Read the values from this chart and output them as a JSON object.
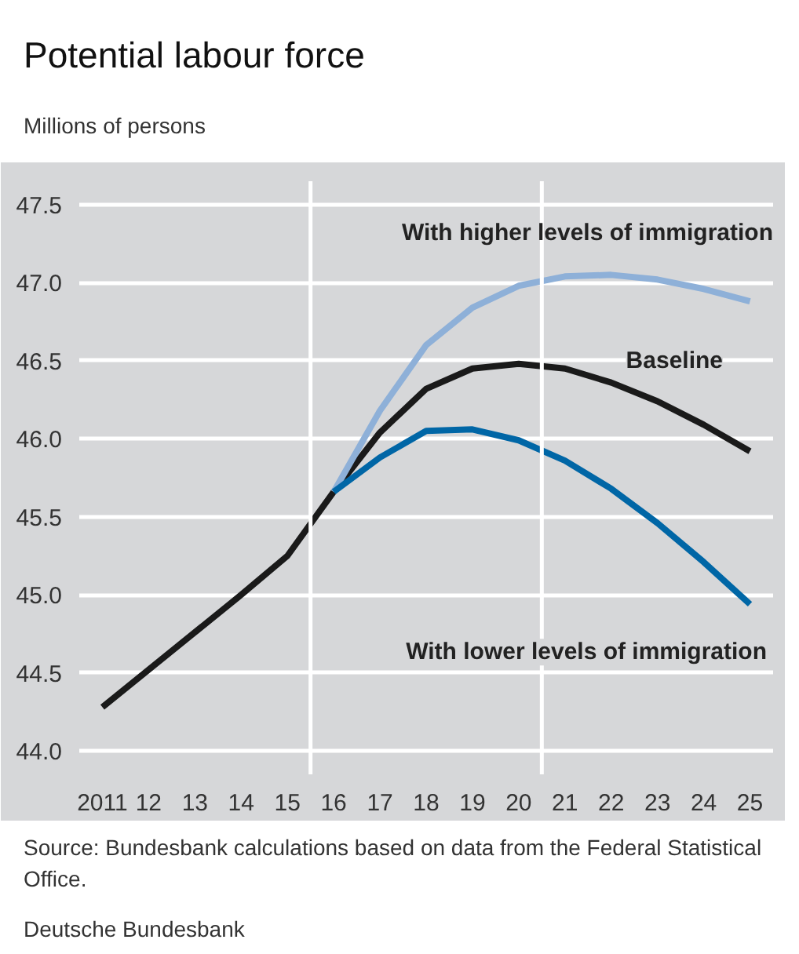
{
  "chart_data": {
    "type": "line",
    "title": "Potential labour force",
    "subtitle": "Millions of persons",
    "x": [
      2011,
      2012,
      2013,
      2014,
      2015,
      2016,
      2017,
      2018,
      2019,
      2020,
      2021,
      2022,
      2023,
      2024,
      2025
    ],
    "series": [
      {
        "name": "Baseline",
        "color": "#1a1a1a",
        "values": [
          44.28,
          44.52,
          44.76,
          45.0,
          45.25,
          45.66,
          46.04,
          46.32,
          46.45,
          46.48,
          46.45,
          46.36,
          46.24,
          46.09,
          45.92
        ]
      },
      {
        "name": "With higher levels of immigration",
        "color": "#8eb0d8",
        "x": [
          2016,
          2017,
          2018,
          2019,
          2020,
          2021,
          2022,
          2023,
          2024,
          2025
        ],
        "values": [
          45.66,
          46.18,
          46.6,
          46.84,
          46.98,
          47.04,
          47.05,
          47.02,
          46.96,
          46.88
        ]
      },
      {
        "name": "With lower levels of immigration",
        "color": "#0066a6",
        "x": [
          2016,
          2017,
          2018,
          2019,
          2020,
          2021,
          2022,
          2023,
          2024,
          2025
        ],
        "values": [
          45.66,
          45.88,
          46.05,
          46.06,
          45.99,
          45.86,
          45.68,
          45.46,
          45.21,
          44.94
        ]
      }
    ],
    "xlim": [
      2010.5,
      2025.5
    ],
    "xticks": [
      {
        "value": 2011,
        "label": "2011"
      },
      {
        "value": 2012,
        "label": "12"
      },
      {
        "value": 2013,
        "label": "13"
      },
      {
        "value": 2014,
        "label": "14"
      },
      {
        "value": 2015,
        "label": "15"
      },
      {
        "value": 2016,
        "label": "16"
      },
      {
        "value": 2017,
        "label": "17"
      },
      {
        "value": 2018,
        "label": "18"
      },
      {
        "value": 2019,
        "label": "19"
      },
      {
        "value": 2020,
        "label": "20"
      },
      {
        "value": 2021,
        "label": "21"
      },
      {
        "value": 2022,
        "label": "22"
      },
      {
        "value": 2023,
        "label": "23"
      },
      {
        "value": 2024,
        "label": "24"
      },
      {
        "value": 2025,
        "label": "25"
      }
    ],
    "ylim": [
      43.85,
      47.65
    ],
    "yticks": [
      {
        "value": 44.0,
        "label": "44.0"
      },
      {
        "value": 44.5,
        "label": "44.5"
      },
      {
        "value": 45.0,
        "label": "45.0"
      },
      {
        "value": 45.5,
        "label": "45.5"
      },
      {
        "value": 46.0,
        "label": "46.0"
      },
      {
        "value": 46.5,
        "label": "46.5"
      },
      {
        "value": 47.0,
        "label": "47.0"
      },
      {
        "value": 47.5,
        "label": "47.5"
      }
    ],
    "grid": "y",
    "ref_lines": [
      {
        "axis": "x",
        "value": 2015.5,
        "color": "#ffffff"
      },
      {
        "axis": "x",
        "value": 2020.5,
        "color": "#ffffff"
      }
    ],
    "annotations": [
      "Source: Bundesbank calculations based on data from the Federal Statistical Office.",
      "Deutsche Bundesbank"
    ]
  }
}
